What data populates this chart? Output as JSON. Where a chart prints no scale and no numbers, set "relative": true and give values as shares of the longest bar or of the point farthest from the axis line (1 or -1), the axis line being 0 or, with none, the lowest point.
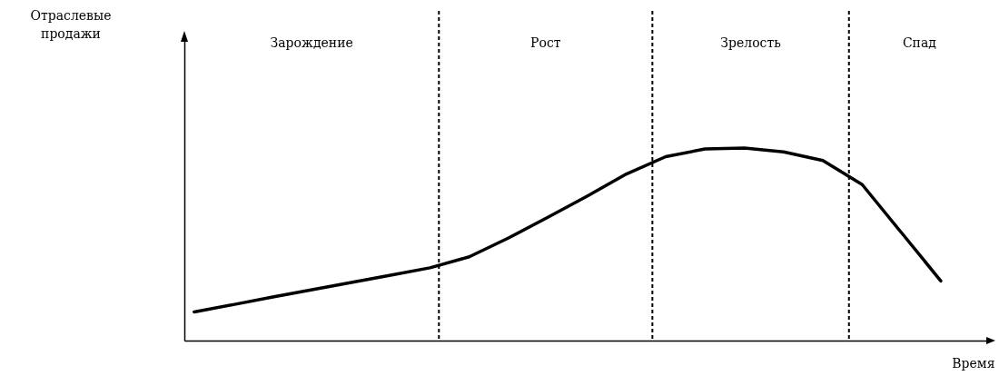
{
  "chart_data": {
    "type": "line",
    "relative": true,
    "xlabel": "Время",
    "categories": [
      null,
      null,
      null,
      null,
      null,
      null,
      null,
      null,
      null,
      null,
      null,
      null,
      null,
      null,
      null,
      null,
      null,
      null,
      null,
      null,
      null
    ],
    "annotations": [
      "Отраслевые продажи",
      "Зарождение",
      "Рост",
      "Зрелость",
      "Спад"
    ],
    "ref_lines": [
      {
        "axis": "x",
        "line_style": "dashed"
      },
      {
        "axis": "x",
        "line_style": "dashed"
      },
      {
        "axis": "x",
        "line_style": "dashed"
      }
    ],
    "series": [
      {
        "color": "#000000",
        "values": [
          0.149,
          0.187,
          0.226,
          0.264,
          0.302,
          0.34,
          0.378,
          0.435,
          0.533,
          0.64,
          0.75,
          0.865,
          0.955,
          0.995,
          1,
          0.98,
          0.935,
          0.81,
          0.56,
          0.31,
          null
        ]
      }
    ]
  }
}
